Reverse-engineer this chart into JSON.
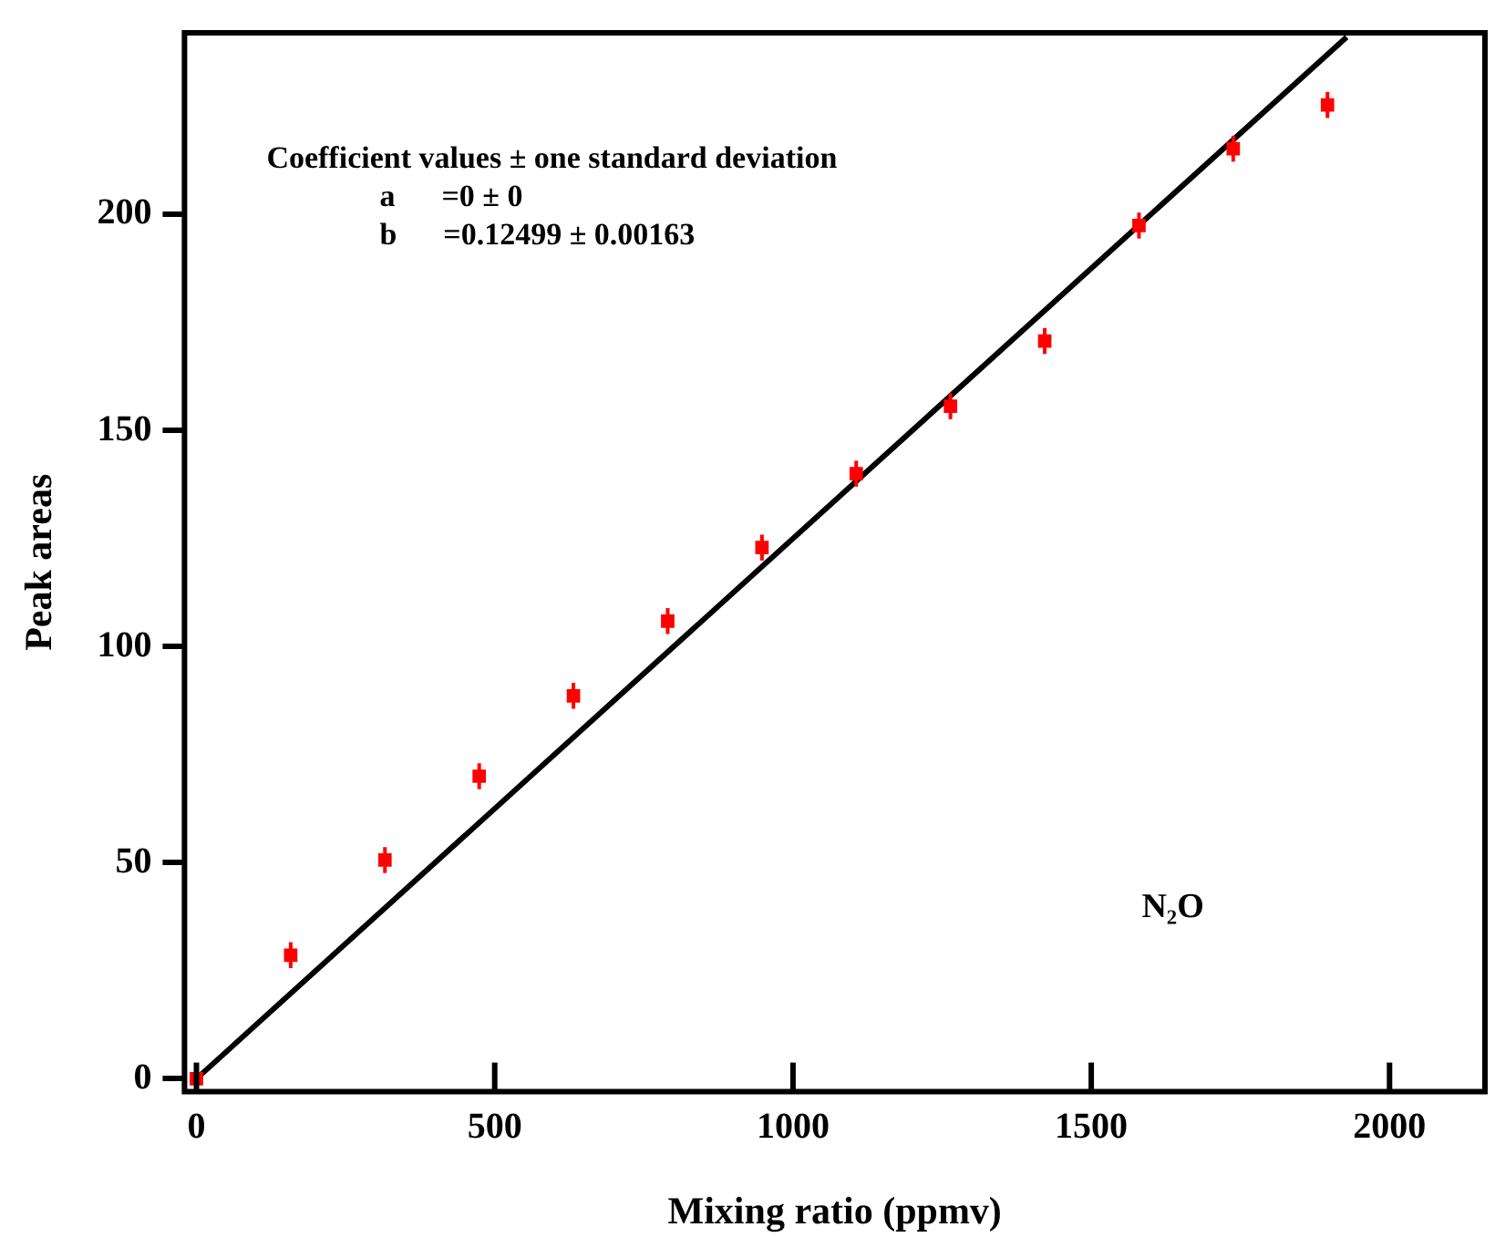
{
  "chart_data": {
    "type": "scatter",
    "xlabel": "Mixing ratio (ppmv)",
    "ylabel": "Peak areas",
    "annotations": [
      "Coefficient values ± one standard deviation",
      "a      =0 ± 0",
      "b      =0.12499 ± 0.00163",
      "N₂O"
    ],
    "series": [
      {
        "color": "#ff0000",
        "marker": "square",
        "x": [
          0,
          158,
          316,
          474,
          632,
          790,
          948,
          1106,
          1264,
          1422,
          1580,
          1738,
          1896
        ],
        "values": [
          0,
          28.6,
          50.6,
          70,
          88.6,
          105.9,
          122.9,
          140,
          155.6,
          170.7,
          197.4,
          215.2,
          225.3
        ],
        "errors": [
          null,
          3,
          3,
          3,
          3,
          3,
          3,
          3,
          3,
          3,
          3,
          3,
          3
        ]
      },
      {
        "type": "line",
        "color": "#000000",
        "marker": "none",
        "line_style": "solid",
        "x": [
          0,
          1928
        ],
        "values": [
          0,
          241
        ]
      }
    ],
    "xlim": [
      -20,
      2160
    ],
    "ylim": [
      -3,
      242
    ],
    "xticks": [
      0,
      500,
      1000,
      1500,
      2000
    ],
    "yticks": [
      0,
      50,
      100,
      150,
      200
    ],
    "grid": false,
    "legend": false
  }
}
